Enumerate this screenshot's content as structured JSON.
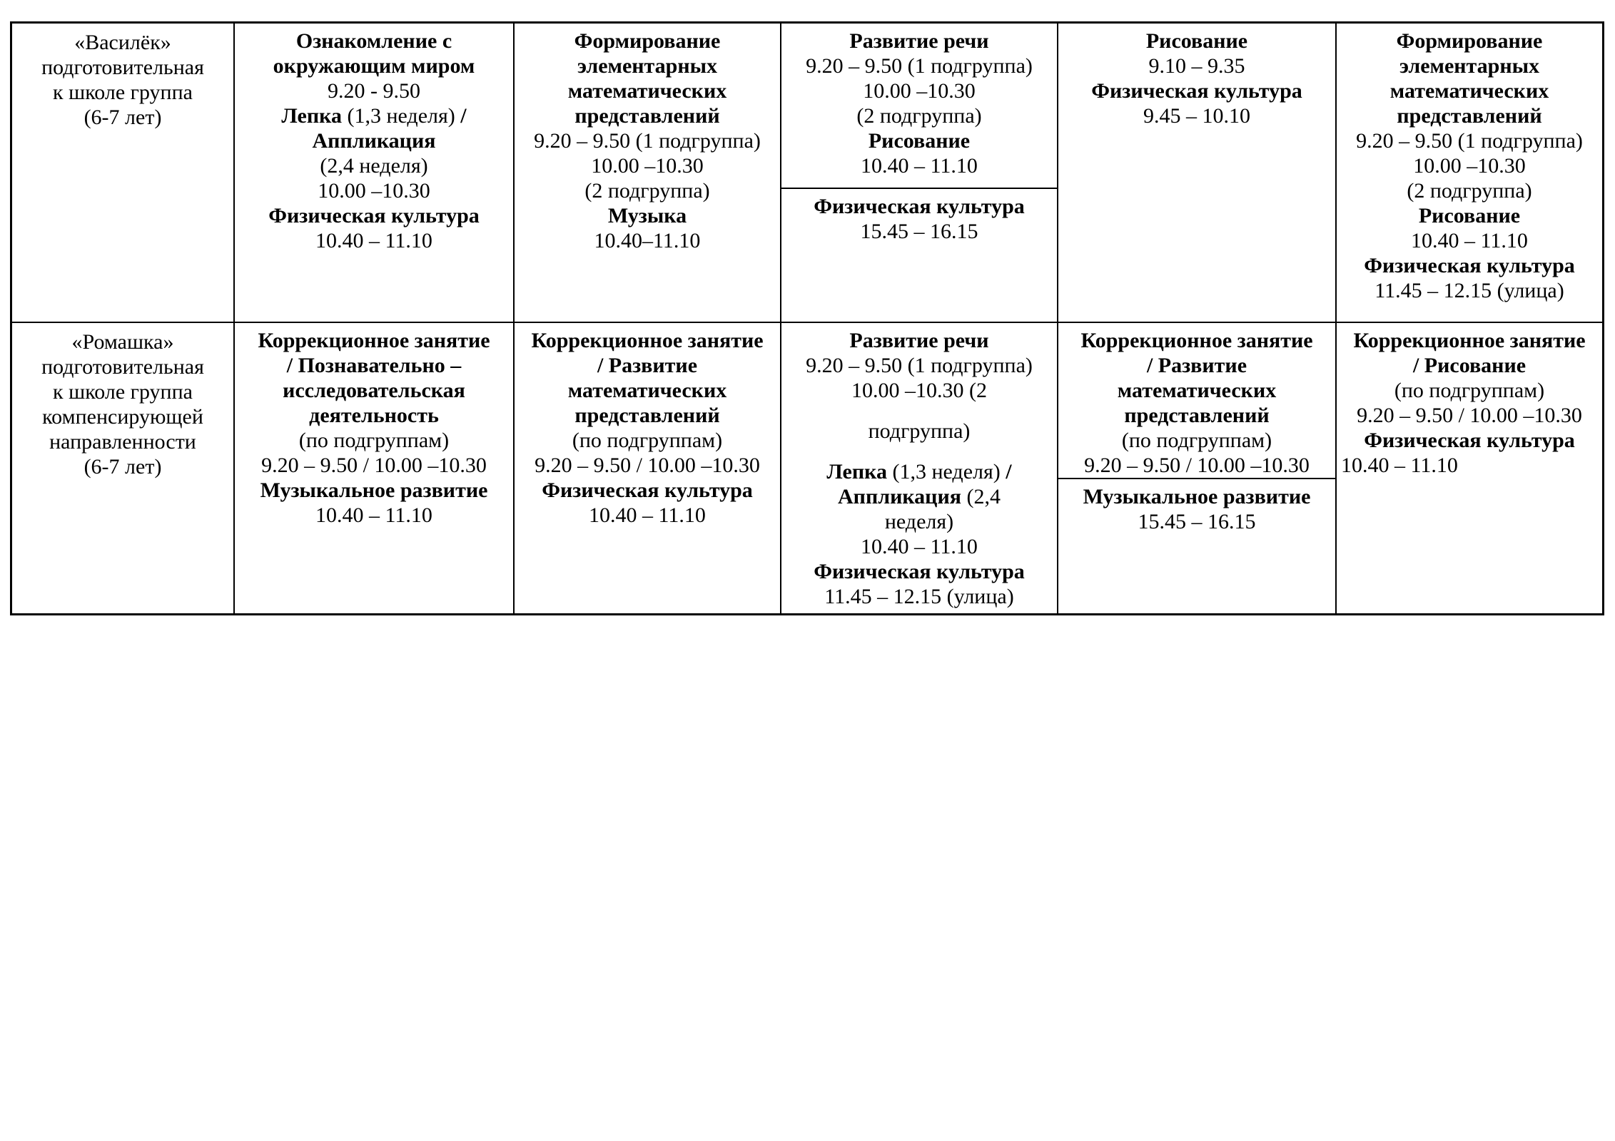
{
  "colors": {
    "background": "#ffffff",
    "text": "#000000",
    "border": "#000000"
  },
  "schedule_table": {
    "rows": [
      {
        "group": {
          "lines": [
            "«Василёк»",
            "подготовительная",
            "к школе группа",
            "(6-7 лет)"
          ]
        },
        "days": [
          {
            "sections": [
              {
                "lines": [
                  {
                    "text": "Ознакомление с",
                    "bold": true
                  },
                  {
                    "text": "окружающим миром",
                    "bold": true
                  },
                  {
                    "text": "9.20 - 9.50"
                  },
                  {
                    "segments": [
                      {
                        "text": "Лепка",
                        "bold": true
                      },
                      {
                        "text": " (1,3 неделя) "
                      },
                      {
                        "text": "/",
                        "bold": true
                      }
                    ]
                  },
                  {
                    "text": "Аппликация",
                    "bold": true
                  },
                  {
                    "text": "(2,4 неделя)"
                  },
                  {
                    "text": "10.00 –10.30"
                  },
                  {
                    "text": "Физическая культура",
                    "bold": true
                  },
                  {
                    "text": "10.40 – 11.10"
                  }
                ]
              }
            ]
          },
          {
            "sections": [
              {
                "lines": [
                  {
                    "text": "Формирование",
                    "bold": true
                  },
                  {
                    "text": "элементарных",
                    "bold": true
                  },
                  {
                    "text": "математических",
                    "bold": true
                  },
                  {
                    "text": "представлений",
                    "bold": true
                  },
                  {
                    "text": "9.20 – 9.50 (1 подгруппа)"
                  },
                  {
                    "text": "10.00 –10.30"
                  },
                  {
                    "text": "(2 подгруппа)"
                  },
                  {
                    "text": "Музыка",
                    "bold": true
                  },
                  {
                    "text": "10.40–11.10"
                  }
                ]
              }
            ]
          },
          {
            "sections": [
              {
                "lines": [
                  {
                    "text": "Развитие речи",
                    "bold": true
                  },
                  {
                    "text": "9.20 – 9.50 (1 подгруппа)"
                  },
                  {
                    "text": "10.00 –10.30"
                  },
                  {
                    "text": "(2 подгруппа)"
                  },
                  {
                    "text": "Рисование",
                    "bold": true
                  },
                  {
                    "text": "10.40 – 11.10"
                  }
                ]
              },
              {
                "lines": [
                  {
                    "text": "Физическая культура",
                    "bold": true
                  },
                  {
                    "text": "15.45 – 16.15"
                  }
                ]
              }
            ]
          },
          {
            "sections": [
              {
                "lines": [
                  {
                    "text": "Рисование",
                    "bold": true
                  },
                  {
                    "text": "9.10 – 9.35"
                  },
                  {
                    "text": "Физическая культура",
                    "bold": true
                  },
                  {
                    "text": "9.45 – 10.10"
                  }
                ]
              }
            ]
          },
          {
            "sections": [
              {
                "lines": [
                  {
                    "text": "Формирование",
                    "bold": true
                  },
                  {
                    "text": "элементарных",
                    "bold": true
                  },
                  {
                    "text": "математических",
                    "bold": true
                  },
                  {
                    "text": "представлений",
                    "bold": true
                  },
                  {
                    "text": "9.20 – 9.50 (1 подгруппа)"
                  },
                  {
                    "text": "10.00 –10.30"
                  },
                  {
                    "text": "(2 подгруппа)"
                  },
                  {
                    "text": "Рисование",
                    "bold": true
                  },
                  {
                    "text": "10.40 – 11.10"
                  },
                  {
                    "text": "Физическая культура",
                    "bold": true
                  },
                  {
                    "text": "11.45 – 12.15 (улица)"
                  }
                ]
              }
            ]
          }
        ]
      },
      {
        "group": {
          "lines": [
            "«Ромашка»",
            "подготовительная",
            "к школе группа",
            "компенсирующей",
            "направленности",
            "(6-7 лет)"
          ]
        },
        "days": [
          {
            "sections": [
              {
                "lines": [
                  {
                    "text": "Коррекционное занятие",
                    "bold": true
                  },
                  {
                    "text": "/ Познавательно –",
                    "bold": true
                  },
                  {
                    "text": "исследовательская",
                    "bold": true
                  },
                  {
                    "text": "деятельность",
                    "bold": true
                  },
                  {
                    "text": "(по подгруппам)"
                  },
                  {
                    "text": "9.20 – 9.50 / 10.00 –10.30"
                  },
                  {
                    "text": "Музыкальное развитие",
                    "bold": true
                  },
                  {
                    "text": "10.40 – 11.10"
                  }
                ]
              }
            ]
          },
          {
            "sections": [
              {
                "lines": [
                  {
                    "text": "Коррекционное занятие",
                    "bold": true
                  },
                  {
                    "text": "/ Развитие",
                    "bold": true
                  },
                  {
                    "text": "математических",
                    "bold": true
                  },
                  {
                    "text": "представлений",
                    "bold": true
                  },
                  {
                    "text": "(по подгруппам)"
                  },
                  {
                    "text": "9.20 – 9.50 / 10.00 –10.30"
                  },
                  {
                    "text": "Физическая культура",
                    "bold": true
                  },
                  {
                    "text": "10.40 – 11.10"
                  }
                ]
              }
            ]
          },
          {
            "sections": [
              {
                "lines": [
                  {
                    "text": "Развитие речи",
                    "bold": true
                  },
                  {
                    "text": "9.20 – 9.50 (1 подгруппа)"
                  },
                  {
                    "text": "10.00 –10.30 (2"
                  },
                  {
                    "text": "подгруппа)",
                    "gap": true
                  },
                  {
                    "segments": [
                      {
                        "text": "Лепка",
                        "bold": true
                      },
                      {
                        "text": " (1,3 неделя) "
                      },
                      {
                        "text": "/",
                        "bold": true
                      }
                    ],
                    "gap": true
                  },
                  {
                    "segments": [
                      {
                        "text": "Аппликация",
                        "bold": true
                      },
                      {
                        "text": " (2,4"
                      }
                    ]
                  },
                  {
                    "text": "неделя)"
                  },
                  {
                    "text": "10.40 – 11.10"
                  },
                  {
                    "text": "Физическая культура",
                    "bold": true
                  },
                  {
                    "text": "11.45 – 12.15 (улица)"
                  }
                ]
              }
            ]
          },
          {
            "sections": [
              {
                "lines": [
                  {
                    "text": "Коррекционное занятие",
                    "bold": true
                  },
                  {
                    "text": "/ Развитие",
                    "bold": true
                  },
                  {
                    "text": "математических",
                    "bold": true
                  },
                  {
                    "text": "представлений",
                    "bold": true
                  },
                  {
                    "text": "(по подгруппам)"
                  },
                  {
                    "text": "9.20 – 9.50 / 10.00 –10.30"
                  }
                ]
              },
              {
                "lines": [
                  {
                    "text": "Музыкальное развитие",
                    "bold": true
                  },
                  {
                    "text": "15.45 – 16.15"
                  }
                ]
              }
            ]
          },
          {
            "sections": [
              {
                "lines": [
                  {
                    "text": "Коррекционное занятие",
                    "bold": true
                  },
                  {
                    "text": "/ Рисование",
                    "bold": true
                  },
                  {
                    "text": "(по подгруппам)"
                  },
                  {
                    "text": "9.20 – 9.50 / 10.00 –10.30"
                  },
                  {
                    "text": "Физическая культура",
                    "bold": true
                  },
                  {
                    "text": "10.40 – 11.10",
                    "align": "left"
                  }
                ]
              }
            ]
          }
        ]
      }
    ]
  }
}
